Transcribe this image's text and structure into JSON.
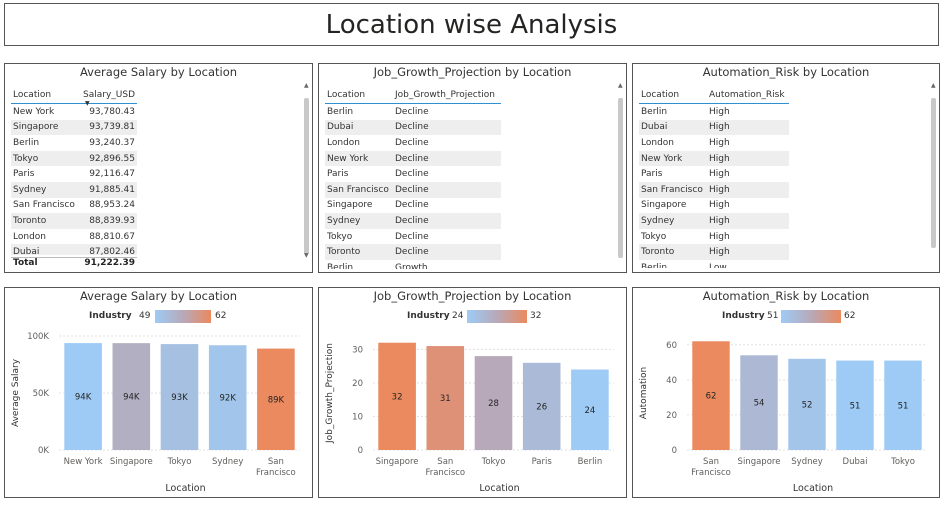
{
  "page_title": "Location wise Analysis",
  "tables": [
    {
      "title": "Average Salary by Location",
      "col1_header": "Location",
      "col2_header": "Salary_USD",
      "rows": [
        [
          "New York",
          "93,780.43"
        ],
        [
          "Singapore",
          "93,739.81"
        ],
        [
          "Berlin",
          "93,240.37"
        ],
        [
          "Tokyo",
          "92,896.55"
        ],
        [
          "Paris",
          "92,116.47"
        ],
        [
          "Sydney",
          "91,885.41"
        ],
        [
          "San Francisco",
          "88,953.24"
        ],
        [
          "Toronto",
          "88,839.93"
        ],
        [
          "London",
          "88,810.67"
        ],
        [
          "Dubai",
          "87,802.46"
        ]
      ],
      "total_label": "Total",
      "total_value": "91,222.39"
    },
    {
      "title": "Job_Growth_Projection by Location",
      "col1_header": "Location",
      "col2_header": "Job_Growth_Projection",
      "rows": [
        [
          "Berlin",
          "Decline"
        ],
        [
          "Dubai",
          "Decline"
        ],
        [
          "London",
          "Decline"
        ],
        [
          "New York",
          "Decline"
        ],
        [
          "Paris",
          "Decline"
        ],
        [
          "San Francisco",
          "Decline"
        ],
        [
          "Singapore",
          "Decline"
        ],
        [
          "Sydney",
          "Decline"
        ],
        [
          "Tokyo",
          "Decline"
        ],
        [
          "Toronto",
          "Decline"
        ],
        [
          "Berlin",
          "Growth"
        ]
      ]
    },
    {
      "title": "Automation_Risk by Location",
      "col1_header": "Location",
      "col2_header": "Automation_Risk",
      "rows": [
        [
          "Berlin",
          "High"
        ],
        [
          "Dubai",
          "High"
        ],
        [
          "London",
          "High"
        ],
        [
          "New York",
          "High"
        ],
        [
          "Paris",
          "High"
        ],
        [
          "San Francisco",
          "High"
        ],
        [
          "Singapore",
          "High"
        ],
        [
          "Sydney",
          "High"
        ],
        [
          "Tokyo",
          "High"
        ],
        [
          "Toronto",
          "High"
        ],
        [
          "Berlin",
          "Low"
        ]
      ]
    }
  ],
  "chart_data": [
    {
      "type": "bar",
      "title": "Average Salary by Location",
      "xlabel": "Location",
      "ylabel": "Average Salary",
      "categories": [
        "New York",
        "Singapore",
        "Tokyo",
        "Sydney",
        "San Francisco"
      ],
      "values": [
        93780,
        93740,
        92897,
        91885,
        88953
      ],
      "data_labels": [
        "94K",
        "94K",
        "93K",
        "92K",
        "89K"
      ],
      "ylim": [
        0,
        100000
      ],
      "yticks": [
        "0K",
        "50K",
        "100K"
      ],
      "legend": {
        "label": "Industry",
        "min": "49",
        "max": "62"
      },
      "color_values": [
        50,
        55,
        52,
        51,
        62
      ],
      "grid": true
    },
    {
      "type": "bar",
      "title": "Job_Growth_Projection by Location",
      "xlabel": "Location",
      "ylabel": "Job_Growth_Projection",
      "categories": [
        "Singapore",
        "San Francisco",
        "Tokyo",
        "Paris",
        "Berlin"
      ],
      "values": [
        32,
        31,
        28,
        26,
        24
      ],
      "data_labels": [
        "32",
        "31",
        "28",
        "26",
        "24"
      ],
      "ylim": [
        0,
        34
      ],
      "yticks": [
        "0",
        "10",
        "20",
        "30"
      ],
      "legend": {
        "label": "Industry",
        "min": "24",
        "max": "32"
      },
      "color_values": [
        32,
        31,
        28,
        26,
        24
      ],
      "grid": true
    },
    {
      "type": "bar",
      "title": "Automation_Risk by Location",
      "xlabel": "Location",
      "ylabel": "Automation",
      "categories": [
        "San Francisco",
        "Singapore",
        "Sydney",
        "Dubai",
        "Tokyo"
      ],
      "values": [
        62,
        54,
        52,
        51,
        51
      ],
      "data_labels": [
        "62",
        "54",
        "52",
        "51",
        "51"
      ],
      "ylim": [
        0,
        65
      ],
      "yticks": [
        "0",
        "20",
        "40",
        "60"
      ],
      "legend": {
        "label": "Industry",
        "min": "51",
        "max": "62"
      },
      "color_values": [
        62,
        54,
        52,
        51,
        51
      ],
      "grid": true
    }
  ],
  "colors": {
    "low": "#9ecbf5",
    "mid": "#b7a9b9",
    "high": "#eb895f",
    "header_line": "#2f8fd1",
    "gridline": "#e1e1e1"
  }
}
